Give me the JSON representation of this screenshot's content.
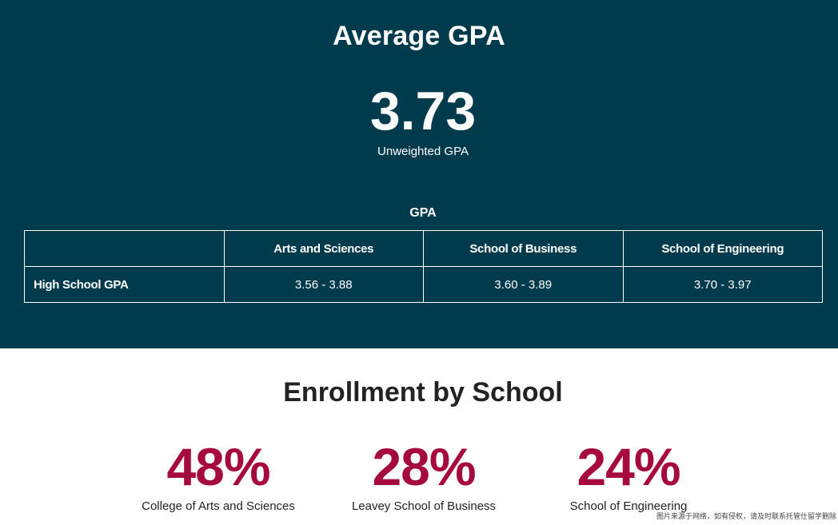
{
  "gpa_section": {
    "heading": "Average GPA",
    "value": "3.73",
    "value_label": "Unweighted GPA",
    "table": {
      "caption": "GPA",
      "columns": [
        "",
        "Arts and Sciences",
        "School of Business",
        "School of Engineering"
      ],
      "rows": [
        {
          "label": "High School GPA",
          "cells": [
            "3.56 - 3.88",
            "3.60 - 3.89",
            "3.70 - 3.97"
          ]
        }
      ]
    },
    "background_color": "#003a4d"
  },
  "enrollment_section": {
    "heading": "Enrollment by School",
    "stats": [
      {
        "value": "48%",
        "label": "College of Arts and Sciences"
      },
      {
        "value": "28%",
        "label": "Leavey School of Business"
      },
      {
        "value": "24%",
        "label": "School of Engineering"
      }
    ],
    "accent_color": "#a6093d"
  },
  "watermark": "图片来源于网络，如有侵权，请及时联系托管仕留学删除"
}
